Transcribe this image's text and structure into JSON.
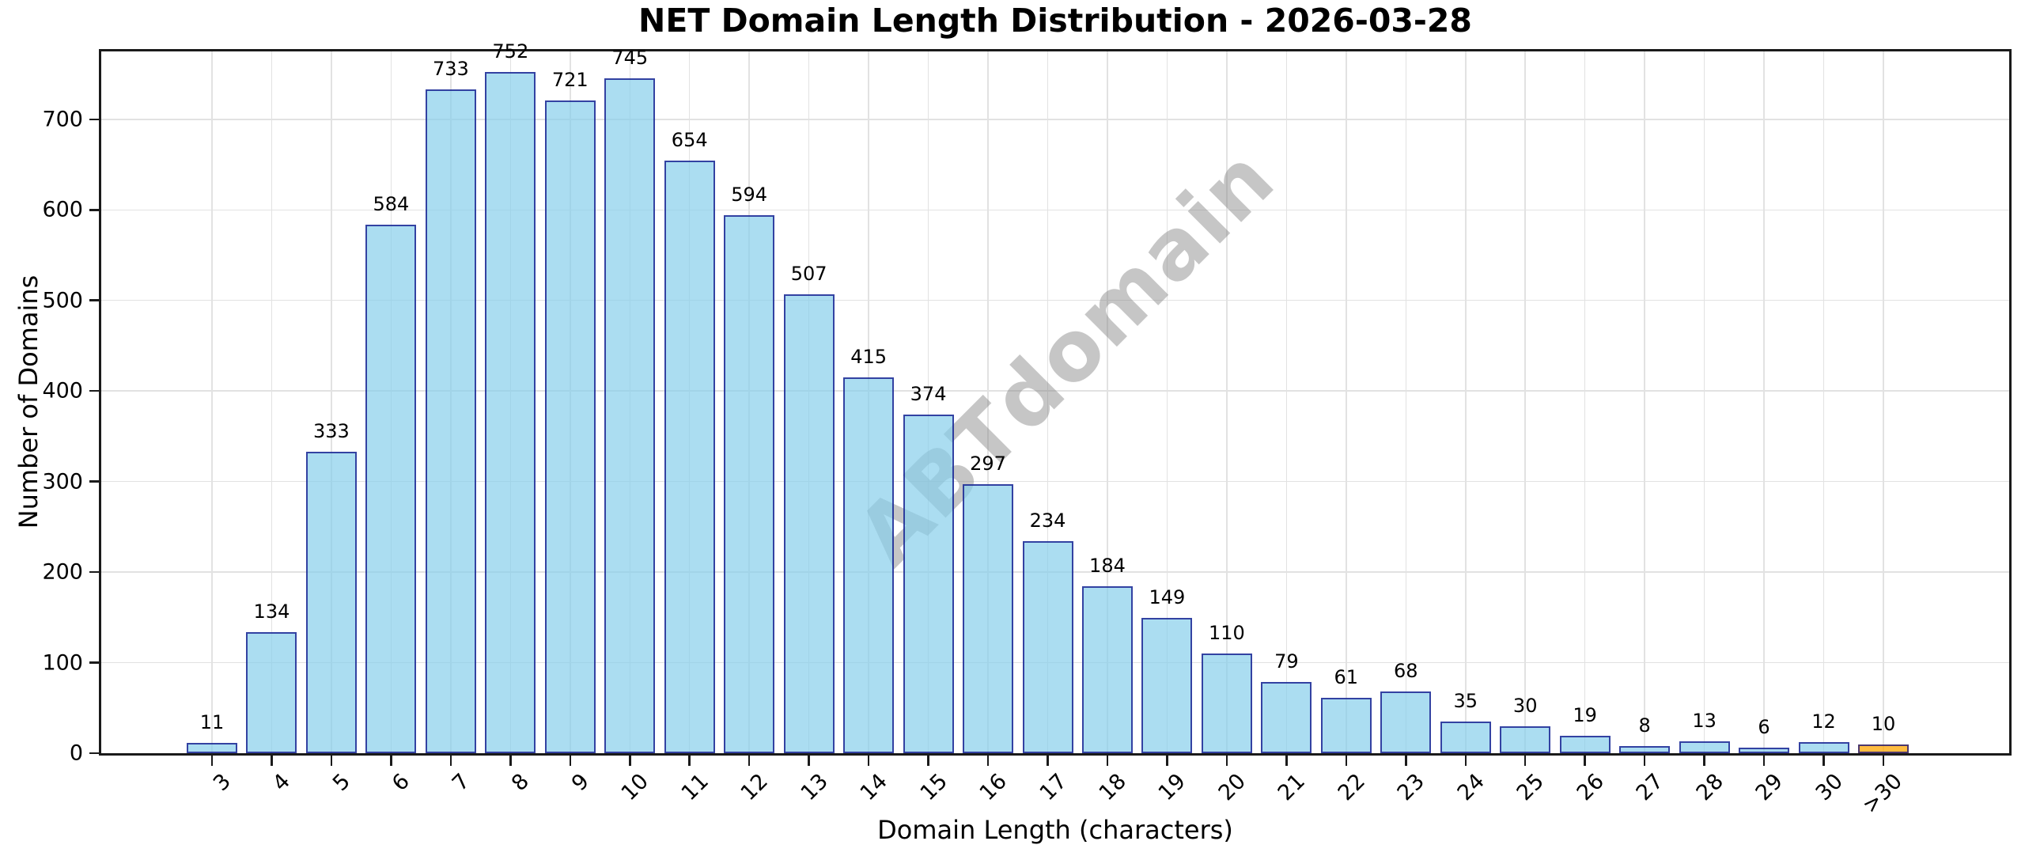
{
  "watermark": "ABTdomain",
  "chart_data": {
    "type": "bar",
    "title": "NET Domain Length Distribution - 2026-03-28",
    "xlabel": "Domain Length (characters)",
    "ylabel": "Number of Domains",
    "categories": [
      "3",
      "4",
      "5",
      "6",
      "7",
      "8",
      "9",
      "10",
      "11",
      "12",
      "13",
      "14",
      "15",
      "16",
      "17",
      "18",
      "19",
      "20",
      "21",
      "22",
      "23",
      "24",
      "25",
      "26",
      "27",
      "28",
      "29",
      "30",
      ">30"
    ],
    "values": [
      11,
      134,
      333,
      584,
      733,
      752,
      721,
      745,
      654,
      594,
      507,
      415,
      374,
      297,
      234,
      184,
      149,
      110,
      79,
      61,
      68,
      35,
      30,
      19,
      8,
      13,
      6,
      12,
      10
    ],
    "yticks": [
      0,
      100,
      200,
      300,
      400,
      500,
      600,
      700
    ],
    "ylim": [
      0,
      775
    ],
    "grid": true,
    "legend": "none",
    "bar_fill": "#87ceeb",
    "bar_edge": "#000080",
    "bar_alpha": 0.7,
    "highlight_category": ">30",
    "highlight_fill": "#ffa500",
    "value_labels": true
  }
}
